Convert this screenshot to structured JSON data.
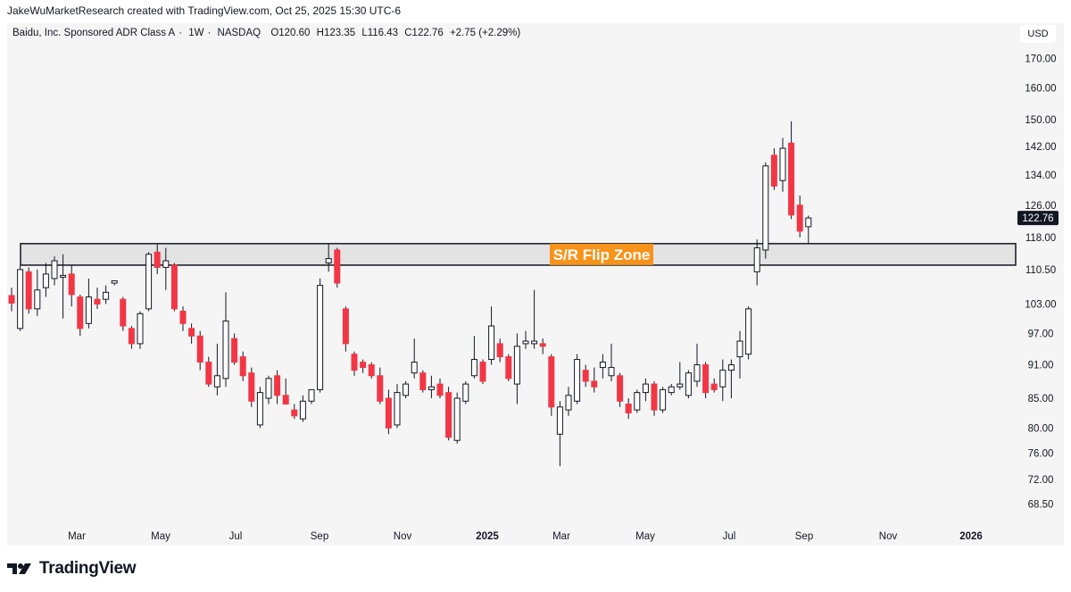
{
  "header": {
    "attribution": "JakeWuMarketResearch created with TradingView.com, Oct 25, 2025 15:30 UTC-6"
  },
  "symbol": {
    "name": "Baidu, Inc. Sponsored ADR Class A",
    "interval": "1W",
    "exchange": "NASDAQ",
    "open": "O120.60",
    "high": "H123.35",
    "low": "L116.43",
    "close": "C122.76",
    "change": "+2.75 (+2.29%)"
  },
  "currency_label": "USD",
  "last_price_label": "122.76",
  "footer": {
    "brand": "TradingView"
  },
  "colors": {
    "up": "#ffffff",
    "down": "#f23645",
    "wick": "#131722",
    "zone": "#e3e3e3",
    "zone_label_bg": "#f7931a"
  },
  "chart_data": {
    "type": "candlestick",
    "title": "Baidu, Inc. Sponsored ADR Class A · 1W · NASDAQ",
    "y_axis_labels": [
      "170.00",
      "160.00",
      "150.00",
      "142.00",
      "134.00",
      "126.00",
      "118.00",
      "110.50",
      "103.00",
      "97.00",
      "91.00",
      "85.00",
      "80.00",
      "76.00",
      "72.00",
      "68.50"
    ],
    "x_axis_labels": [
      "Mar",
      "May",
      "Jul",
      "Sep",
      "Nov",
      "2025",
      "Mar",
      "May",
      "Jul",
      "Sep",
      "Nov",
      "2026"
    ],
    "y_scale": "log",
    "ylim": [
      66,
      178
    ],
    "sr_zone": {
      "label": "S/R Flip Zone",
      "low": 111.5,
      "high": 116.5
    },
    "candles": [
      {
        "o": 104.8,
        "h": 106.5,
        "l": 101.5,
        "c": 103.2
      },
      {
        "o": 98.0,
        "h": 111.5,
        "l": 97.5,
        "c": 110.5
      },
      {
        "o": 110.0,
        "h": 111.0,
        "l": 101.0,
        "c": 102.0
      },
      {
        "o": 102.0,
        "h": 110.5,
        "l": 100.5,
        "c": 106.0
      },
      {
        "o": 106.5,
        "h": 112.0,
        "l": 104.5,
        "c": 109.5
      },
      {
        "o": 108.5,
        "h": 113.5,
        "l": 107.0,
        "c": 112.5
      },
      {
        "o": 108.8,
        "h": 114.0,
        "l": 100.0,
        "c": 109.2
      },
      {
        "o": 109.5,
        "h": 111.5,
        "l": 102.5,
        "c": 105.0
      },
      {
        "o": 104.5,
        "h": 105.0,
        "l": 96.5,
        "c": 98.0
      },
      {
        "o": 99.0,
        "h": 108.5,
        "l": 98.0,
        "c": 104.5
      },
      {
        "o": 104.0,
        "h": 106.5,
        "l": 102.0,
        "c": 103.0
      },
      {
        "o": 104.0,
        "h": 107.0,
        "l": 103.0,
        "c": 105.5
      },
      {
        "o": 107.5,
        "h": 108.0,
        "l": 107.0,
        "c": 108.0
      },
      {
        "o": 104.0,
        "h": 104.5,
        "l": 97.5,
        "c": 98.5
      },
      {
        "o": 98.0,
        "h": 98.5,
        "l": 94.0,
        "c": 95.0
      },
      {
        "o": 95.0,
        "h": 101.5,
        "l": 94.0,
        "c": 101.0
      },
      {
        "o": 102.0,
        "h": 114.5,
        "l": 101.5,
        "c": 114.0
      },
      {
        "o": 114.5,
        "h": 116.5,
        "l": 109.5,
        "c": 111.0
      },
      {
        "o": 111.0,
        "h": 115.5,
        "l": 106.0,
        "c": 112.5
      },
      {
        "o": 111.5,
        "h": 112.0,
        "l": 101.5,
        "c": 102.0
      },
      {
        "o": 101.5,
        "h": 102.5,
        "l": 97.5,
        "c": 99.0
      },
      {
        "o": 98.0,
        "h": 99.0,
        "l": 95.0,
        "c": 96.5
      },
      {
        "o": 96.5,
        "h": 97.5,
        "l": 90.0,
        "c": 91.5
      },
      {
        "o": 91.5,
        "h": 92.5,
        "l": 87.0,
        "c": 87.5
      },
      {
        "o": 87.0,
        "h": 95.0,
        "l": 85.5,
        "c": 89.0
      },
      {
        "o": 88.5,
        "h": 105.5,
        "l": 87.0,
        "c": 99.5
      },
      {
        "o": 96.0,
        "h": 97.0,
        "l": 91.0,
        "c": 91.5
      },
      {
        "o": 92.5,
        "h": 93.5,
        "l": 88.0,
        "c": 89.0
      },
      {
        "o": 89.5,
        "h": 90.5,
        "l": 83.5,
        "c": 84.5
      },
      {
        "o": 80.5,
        "h": 87.0,
        "l": 80.0,
        "c": 86.0
      },
      {
        "o": 85.0,
        "h": 89.0,
        "l": 84.0,
        "c": 88.5
      },
      {
        "o": 89.0,
        "h": 90.0,
        "l": 84.0,
        "c": 85.5
      },
      {
        "o": 85.5,
        "h": 88.5,
        "l": 84.0,
        "c": 84.0
      },
      {
        "o": 83.0,
        "h": 84.0,
        "l": 81.5,
        "c": 82.0
      },
      {
        "o": 81.5,
        "h": 85.5,
        "l": 81.0,
        "c": 84.5
      },
      {
        "o": 84.5,
        "h": 86.5,
        "l": 84.0,
        "c": 86.5
      },
      {
        "o": 86.5,
        "h": 108.5,
        "l": 86.0,
        "c": 107.0
      },
      {
        "o": 112.0,
        "h": 116.5,
        "l": 110.0,
        "c": 113.0
      },
      {
        "o": 115.0,
        "h": 115.5,
        "l": 106.5,
        "c": 107.5
      },
      {
        "o": 102.0,
        "h": 102.5,
        "l": 93.5,
        "c": 95.0
      },
      {
        "o": 93.0,
        "h": 93.5,
        "l": 89.0,
        "c": 90.0
      },
      {
        "o": 91.5,
        "h": 92.0,
        "l": 89.5,
        "c": 90.5
      },
      {
        "o": 91.0,
        "h": 91.5,
        "l": 88.5,
        "c": 89.0
      },
      {
        "o": 89.0,
        "h": 90.5,
        "l": 84.0,
        "c": 84.5
      },
      {
        "o": 85.0,
        "h": 86.5,
        "l": 79.0,
        "c": 80.0
      },
      {
        "o": 80.5,
        "h": 87.5,
        "l": 80.0,
        "c": 86.0
      },
      {
        "o": 85.5,
        "h": 88.0,
        "l": 85.0,
        "c": 87.5
      },
      {
        "o": 89.5,
        "h": 96.0,
        "l": 88.5,
        "c": 91.5
      },
      {
        "o": 89.5,
        "h": 90.0,
        "l": 86.0,
        "c": 86.5
      },
      {
        "o": 86.5,
        "h": 89.0,
        "l": 85.0,
        "c": 87.0
      },
      {
        "o": 87.5,
        "h": 88.5,
        "l": 85.0,
        "c": 85.5
      },
      {
        "o": 86.0,
        "h": 87.0,
        "l": 78.0,
        "c": 78.5
      },
      {
        "o": 78.0,
        "h": 86.0,
        "l": 77.5,
        "c": 85.0
      },
      {
        "o": 84.5,
        "h": 88.0,
        "l": 84.0,
        "c": 87.5
      },
      {
        "o": 89.0,
        "h": 96.5,
        "l": 88.5,
        "c": 92.0
      },
      {
        "o": 91.5,
        "h": 92.0,
        "l": 87.5,
        "c": 88.0
      },
      {
        "o": 92.0,
        "h": 102.5,
        "l": 91.0,
        "c": 98.5
      },
      {
        "o": 95.0,
        "h": 96.0,
        "l": 91.5,
        "c": 92.5
      },
      {
        "o": 92.5,
        "h": 93.0,
        "l": 88.0,
        "c": 88.5
      },
      {
        "o": 87.5,
        "h": 97.0,
        "l": 84.0,
        "c": 94.5
      },
      {
        "o": 95.0,
        "h": 97.5,
        "l": 94.0,
        "c": 95.5
      },
      {
        "o": 95.0,
        "h": 106.0,
        "l": 94.0,
        "c": 95.5
      },
      {
        "o": 95.0,
        "h": 96.0,
        "l": 93.0,
        "c": 94.5
      },
      {
        "o": 92.5,
        "h": 93.0,
        "l": 82.0,
        "c": 83.5
      },
      {
        "o": 79.0,
        "h": 84.5,
        "l": 74.0,
        "c": 83.5
      },
      {
        "o": 83.0,
        "h": 87.0,
        "l": 82.0,
        "c": 85.5
      },
      {
        "o": 84.5,
        "h": 93.0,
        "l": 84.0,
        "c": 92.0
      },
      {
        "o": 90.0,
        "h": 91.0,
        "l": 87.0,
        "c": 88.0
      },
      {
        "o": 88.0,
        "h": 90.5,
        "l": 86.0,
        "c": 87.0
      },
      {
        "o": 90.5,
        "h": 93.0,
        "l": 88.5,
        "c": 91.5
      },
      {
        "o": 89.0,
        "h": 95.0,
        "l": 88.0,
        "c": 90.5
      },
      {
        "o": 89.0,
        "h": 89.5,
        "l": 83.5,
        "c": 84.5
      },
      {
        "o": 84.0,
        "h": 85.0,
        "l": 81.5,
        "c": 82.5
      },
      {
        "o": 83.0,
        "h": 86.5,
        "l": 82.5,
        "c": 86.0
      },
      {
        "o": 86.0,
        "h": 88.5,
        "l": 84.5,
        "c": 87.5
      },
      {
        "o": 87.5,
        "h": 88.0,
        "l": 82.0,
        "c": 83.0
      },
      {
        "o": 83.0,
        "h": 87.0,
        "l": 82.5,
        "c": 86.5
      },
      {
        "o": 86.0,
        "h": 87.5,
        "l": 85.5,
        "c": 87.0
      },
      {
        "o": 87.0,
        "h": 91.5,
        "l": 86.5,
        "c": 87.5
      },
      {
        "o": 85.5,
        "h": 90.0,
        "l": 85.0,
        "c": 89.5
      },
      {
        "o": 88.0,
        "h": 95.0,
        "l": 87.0,
        "c": 91.0
      },
      {
        "o": 91.0,
        "h": 91.5,
        "l": 85.0,
        "c": 86.0
      },
      {
        "o": 87.5,
        "h": 88.5,
        "l": 86.0,
        "c": 86.5
      },
      {
        "o": 87.0,
        "h": 92.0,
        "l": 84.5,
        "c": 90.0
      },
      {
        "o": 90.0,
        "h": 92.0,
        "l": 85.0,
        "c": 91.0
      },
      {
        "o": 92.5,
        "h": 97.5,
        "l": 88.5,
        "c": 95.5
      },
      {
        "o": 93.0,
        "h": 102.5,
        "l": 92.0,
        "c": 102.0
      },
      {
        "o": 110.0,
        "h": 117.5,
        "l": 107.0,
        "c": 115.5
      },
      {
        "o": 115.0,
        "h": 137.5,
        "l": 113.0,
        "c": 136.5
      },
      {
        "o": 139.5,
        "h": 141.5,
        "l": 130.0,
        "c": 131.0
      },
      {
        "o": 132.5,
        "h": 144.5,
        "l": 129.5,
        "c": 141.5
      },
      {
        "o": 143.0,
        "h": 149.5,
        "l": 122.5,
        "c": 123.5
      },
      {
        "o": 126.0,
        "h": 128.5,
        "l": 118.0,
        "c": 119.5
      },
      {
        "o": 120.6,
        "h": 123.35,
        "l": 116.43,
        "c": 122.76
      }
    ]
  }
}
